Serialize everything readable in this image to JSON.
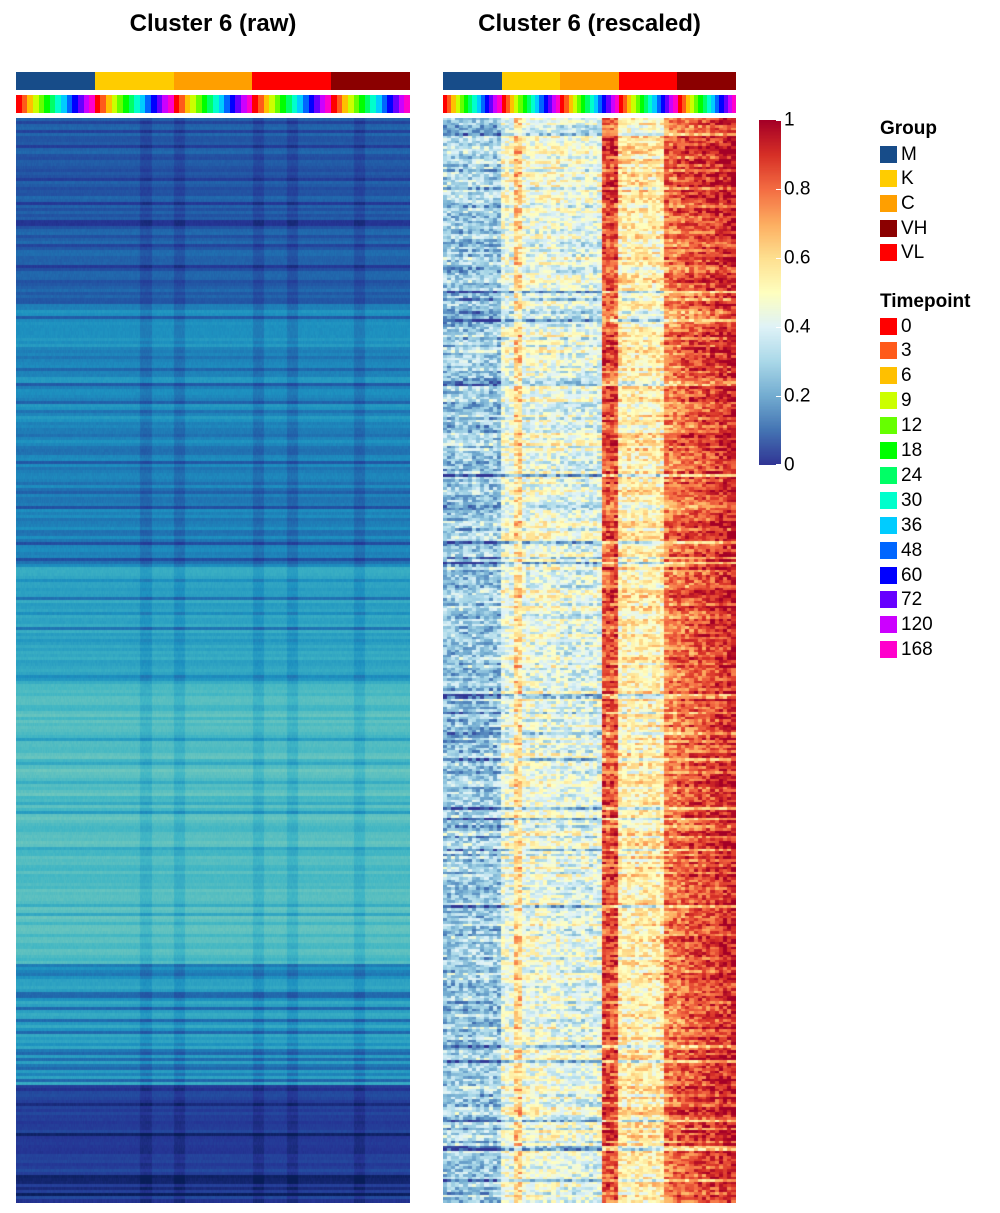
{
  "titles": {
    "raw": "Cluster 6 (raw)",
    "rescaled": "Cluster 6 (rescaled)"
  },
  "colorbar": {
    "ticks": [
      "1",
      "0.8",
      "0.6",
      "0.4",
      "0.2",
      "0"
    ],
    "tick_values": [
      1,
      0.8,
      0.6,
      0.4,
      0.2,
      0
    ],
    "colors": [
      "#313695",
      "#4575b4",
      "#74add1",
      "#abd9e9",
      "#e0f3f8",
      "#ffffbf",
      "#fee090",
      "#fdae61",
      "#f46d43",
      "#d73027",
      "#a50026"
    ]
  },
  "legend": {
    "group_title": "Group",
    "groups": [
      {
        "label": "M",
        "color": "#174c89"
      },
      {
        "label": "K",
        "color": "#ffcc00"
      },
      {
        "label": "C",
        "color": "#ff9f00"
      },
      {
        "label": "VH",
        "color": "#8b0000"
      },
      {
        "label": "VL",
        "color": "#ff0000"
      }
    ],
    "timepoint_title": "Timepoint",
    "timepoints": [
      {
        "label": "0",
        "color": "#ff0000"
      },
      {
        "label": "3",
        "color": "#ff5a1a"
      },
      {
        "label": "6",
        "color": "#ffc000"
      },
      {
        "label": "9",
        "color": "#ccff00"
      },
      {
        "label": "12",
        "color": "#66ff00"
      },
      {
        "label": "18",
        "color": "#00ff00"
      },
      {
        "label": "24",
        "color": "#00ff66"
      },
      {
        "label": "30",
        "color": "#00ffcc"
      },
      {
        "label": "36",
        "color": "#00ccff"
      },
      {
        "label": "48",
        "color": "#0066ff"
      },
      {
        "label": "60",
        "color": "#0000ff"
      },
      {
        "label": "72",
        "color": "#6600ff"
      },
      {
        "label": "120",
        "color": "#cc00ff"
      },
      {
        "label": "168",
        "color": "#ff00cc"
      }
    ]
  },
  "chart_data": [
    {
      "type": "heatmap",
      "title": "Cluster 6 (raw)",
      "column_groups": [
        "M",
        "K",
        "C",
        "VL",
        "VH"
      ],
      "group_widths_fraction": [
        0.2,
        0.2,
        0.2,
        0.2,
        0.2
      ],
      "timepoints_per_group": [
        "0",
        "3",
        "6",
        "9",
        "12",
        "18",
        "24",
        "30",
        "36",
        "48",
        "60",
        "72",
        "120",
        "168"
      ],
      "colormap": "YlGnBu-like (dark blue to pale yellow)",
      "row_blocks": [
        {
          "rows_fraction": [
            0.0,
            0.17
          ],
          "level": 0.28
        },
        {
          "rows_fraction": [
            0.17,
            0.3
          ],
          "level": 0.42
        },
        {
          "rows_fraction": [
            0.3,
            0.41
          ],
          "level": 0.38
        },
        {
          "rows_fraction": [
            0.41,
            0.52
          ],
          "level": 0.5
        },
        {
          "rows_fraction": [
            0.52,
            0.78
          ],
          "level": 0.62
        },
        {
          "rows_fraction": [
            0.78,
            0.89
          ],
          "level": 0.48
        },
        {
          "rows_fraction": [
            0.89,
            1.0
          ],
          "level": 0.18
        }
      ]
    },
    {
      "type": "heatmap",
      "title": "Cluster 6 (rescaled)",
      "column_groups": [
        "M",
        "K",
        "C",
        "VL",
        "VH"
      ],
      "group_widths_fraction": [
        0.2,
        0.2,
        0.2,
        0.2,
        0.2
      ],
      "timepoints_per_group": [
        "0",
        "3",
        "6",
        "9",
        "12",
        "18",
        "24",
        "30",
        "36",
        "48",
        "60",
        "72",
        "120",
        "168"
      ],
      "colormap": "RdYlBu reversed",
      "value_range": [
        0,
        1
      ],
      "note_levels": {
        "M": 0.3,
        "K": 0.45,
        "C": 0.5,
        "VL": 0.6,
        "VH": 0.85
      }
    }
  ]
}
